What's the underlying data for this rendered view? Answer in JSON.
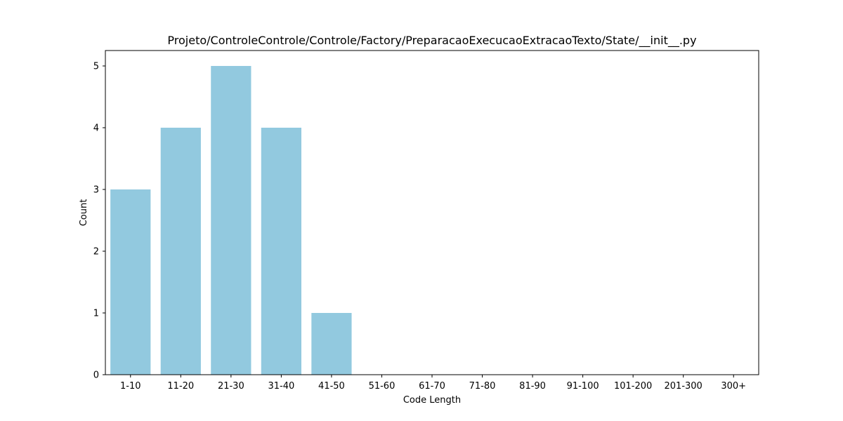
{
  "chart_data": {
    "type": "bar",
    "title": "Projeto/ControleControle/Controle/Factory/PreparacaoExecucaoExtracaoTexto/State/__init__.py",
    "xlabel": "Code Length",
    "ylabel": "Count",
    "categories": [
      "1-10",
      "11-20",
      "21-30",
      "31-40",
      "41-50",
      "51-60",
      "61-70",
      "71-80",
      "81-90",
      "91-100",
      "101-200",
      "201-300",
      "300+"
    ],
    "values": [
      3,
      4,
      5,
      4,
      1,
      0,
      0,
      0,
      0,
      0,
      0,
      0,
      0
    ],
    "ylim": [
      0,
      5.25
    ],
    "yticks": [
      "0",
      "1",
      "2",
      "3",
      "4",
      "5"
    ],
    "bar_color": "#92c9df",
    "grid": false,
    "legend": "none"
  }
}
